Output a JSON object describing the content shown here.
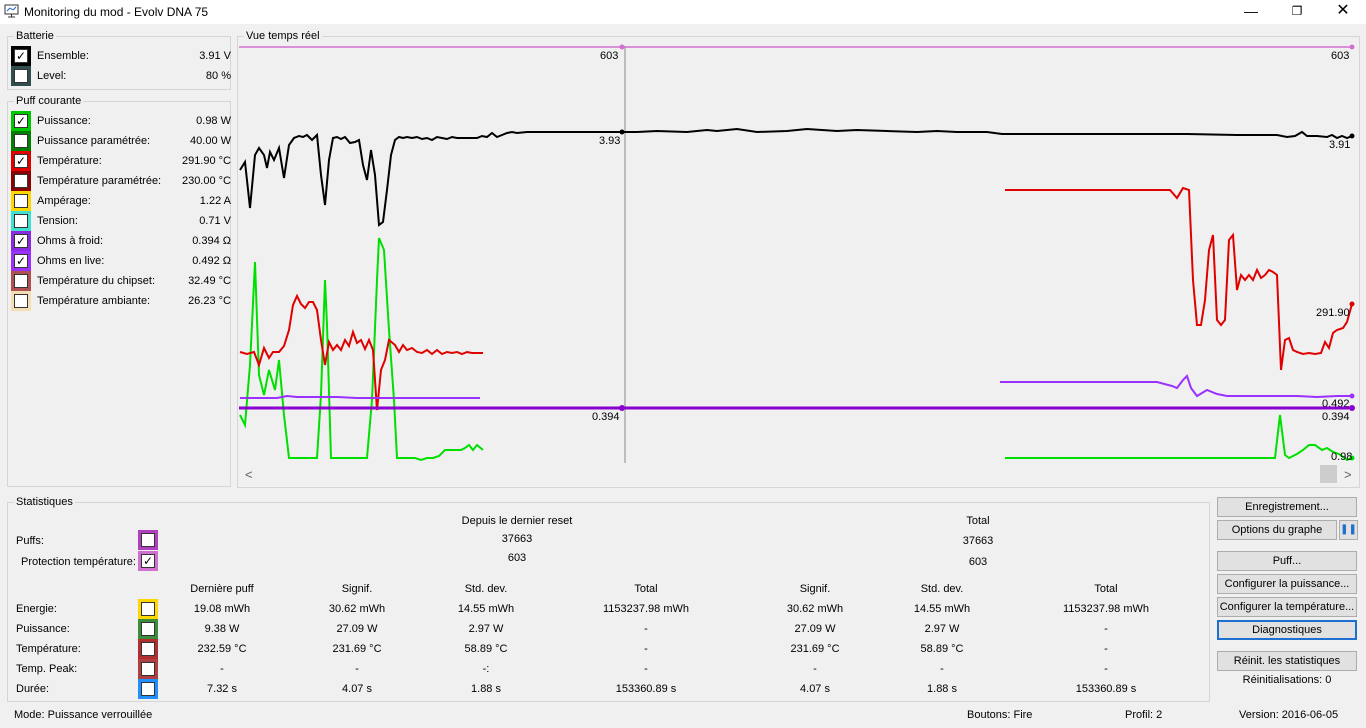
{
  "window": {
    "title": "Monitoring du mod - Evolv DNA 75"
  },
  "batterie": {
    "title": "Batterie",
    "items": [
      {
        "label": "Ensemble:",
        "value": "3.91 V",
        "color": "#000000",
        "checked": true
      },
      {
        "label": "Level:",
        "value": "80 %",
        "color": "#2f4f4f",
        "checked": false
      }
    ]
  },
  "puff": {
    "title": "Puff courante",
    "items": [
      {
        "label": "Puissance:",
        "value": "0.98 W",
        "color": "#00c800",
        "checked": true
      },
      {
        "label": "Puissance paramétrée:",
        "value": "40.00 W",
        "color": "#008000",
        "checked": false
      },
      {
        "label": "Température:",
        "value": "291.90 °C",
        "color": "#e00000",
        "checked": true
      },
      {
        "label": "Température paramétrée:",
        "value": "230.00 °C",
        "color": "#8b0000",
        "checked": false
      },
      {
        "label": "Ampérage:",
        "value": "1.22 A",
        "color": "#ffd700",
        "checked": false
      },
      {
        "label": "Tension:",
        "value": "0.71 V",
        "color": "#40e0d0",
        "checked": false
      },
      {
        "label": "Ohms à froid:",
        "value": "0.394 Ω",
        "color": "#8a2be2",
        "checked": true
      },
      {
        "label": "Ohms en live:",
        "value": "0.492 Ω",
        "color": "#9b30ff",
        "checked": true
      },
      {
        "label": "Température du chipset:",
        "value": "32.49 °C",
        "color": "#b05050",
        "checked": false
      },
      {
        "label": "Température ambiante:",
        "value": "26.23 °C",
        "color": "#f5deb3",
        "checked": false
      }
    ]
  },
  "graph": {
    "title": "Vue temps réel",
    "labels": {
      "top_mid": "603",
      "top_right": "603",
      "batt_mid": "3.93",
      "batt_right": "3.91",
      "temp_right": "291.90",
      "ohm_live_right": "0.492",
      "ohm_mid": "0.394",
      "ohm_right": "0.394",
      "power_right": "0.98"
    },
    "scroll_left": "<",
    "scroll_right": ">"
  },
  "stats": {
    "title": "Statistiques",
    "header_reset": "Depuis le dernier reset",
    "header_total": "Total",
    "puffs_label": "Puffs:",
    "puffs_reset": "37663",
    "puffs_total": "37663",
    "prot_label": "Protection température:",
    "prot_reset": "603",
    "prot_total": "603",
    "col_headers": [
      "Dernière puff",
      "Signif.",
      "Std. dev.",
      "Total",
      "Signif.",
      "Std. dev.",
      "Total"
    ],
    "rows": [
      {
        "label": "Energie:",
        "color": "#ffd700",
        "values": [
          "19.08 mWh",
          "30.62 mWh",
          "14.55 mWh",
          "1153237.98 mWh",
          "30.62 mWh",
          "14.55 mWh",
          "1153237.98 mWh"
        ]
      },
      {
        "label": "Puissance:",
        "color": "#3c8c3c",
        "values": [
          "9.38 W",
          "27.09 W",
          "2.97 W",
          "-",
          "27.09 W",
          "2.97 W",
          "-"
        ]
      },
      {
        "label": "Température:",
        "color": "#b03030",
        "values": [
          "232.59 °C",
          "231.69 °C",
          "58.89 °C",
          "-",
          "231.69 °C",
          "58.89 °C",
          "-"
        ]
      },
      {
        "label": "Temp. Peak:",
        "color": "#b04040",
        "values": [
          "-",
          "-",
          "-:",
          "-",
          "-",
          "-",
          "-"
        ]
      },
      {
        "label": "Durée:",
        "color": "#1e90ff",
        "values": [
          "7.32 s",
          "4.07 s",
          "1.88 s",
          "153360.89 s",
          "4.07 s",
          "1.88 s",
          "153360.89 s"
        ]
      }
    ]
  },
  "buttons": {
    "enregistrement": "Enregistrement...",
    "options": "Options du graphe",
    "pause": "❚❚",
    "puff": "Puff...",
    "conf_puissance": "Configurer la puissance...",
    "conf_temp": "Configurer la température...",
    "diagnostiques": "Diagnostiques",
    "reinit": "Réinit. les statistiques",
    "reinit_count": "Réinitialisations: 0"
  },
  "status": {
    "mode": "Mode: Puissance verrouillée",
    "boutons": "Boutons: Fire",
    "profil": "Profil: 2",
    "version": "Version: 2016-06-05"
  }
}
